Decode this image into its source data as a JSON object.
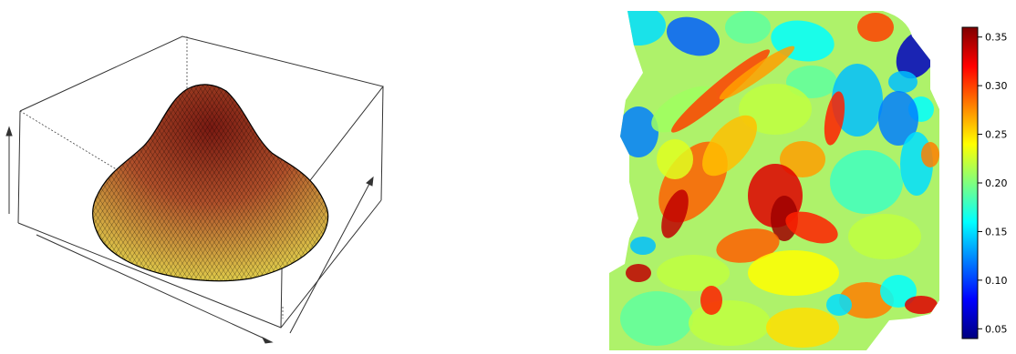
{
  "chart_data": [
    {
      "type": "surface3d",
      "title": "",
      "xlabel": "",
      "ylabel": "",
      "zlabel": "",
      "surface": "smooth single-peaked bump on a circular base",
      "colors": {
        "low": "#e8e050",
        "high": "#7a1a12",
        "mesh": "#000000",
        "box": "#333333"
      }
    },
    {
      "type": "heatmap",
      "title": "",
      "colorbar": {
        "ticks": [
          "0.05",
          "0.10",
          "0.15",
          "0.20",
          "0.25",
          "0.30",
          "0.35"
        ],
        "range": [
          0.04,
          0.36
        ],
        "colors": [
          "#00007f",
          "#0000ff",
          "#007fff",
          "#00ffff",
          "#7fff7f",
          "#ffff00",
          "#ff7f00",
          "#ff0000",
          "#7f0000"
        ]
      }
    }
  ]
}
